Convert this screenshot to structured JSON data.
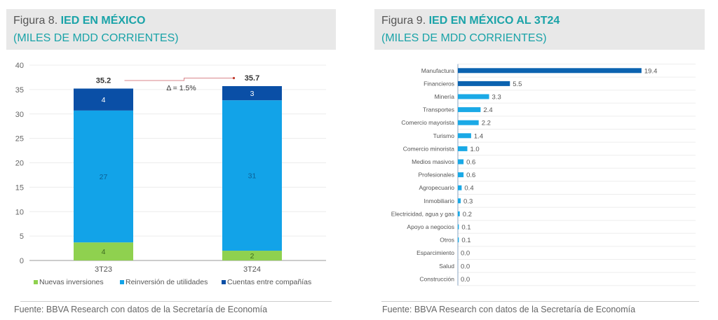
{
  "figures": [
    {
      "label": "Figura 8. ",
      "title": "IED EN MÉXICO",
      "subtitle": "(MILES DE MDD CORRIENTES)",
      "source": "Fuente: BBVA Research con datos de la Secretaría de Economía"
    },
    {
      "label": "Figura 9. ",
      "title": "IED EN MÉXICO AL 3T24",
      "subtitle": "(MILES DE MDD CORRIENTES)",
      "source": "Fuente: BBVA Research con datos de la Secretaría de Economía"
    }
  ],
  "chart_data": [
    {
      "type": "bar",
      "stacked": true,
      "title": "IED EN MÉXICO (MILES DE MDD CORRIENTES)",
      "categories": [
        "3T23",
        "3T24"
      ],
      "series": [
        {
          "name": "Nuevas inversiones",
          "values": [
            3.7,
            2.0
          ],
          "labels": [
            "4",
            "2"
          ],
          "color": "#8fd14f"
        },
        {
          "name": "Reinversión de utilidades",
          "values": [
            27.0,
            30.8
          ],
          "labels": [
            "27",
            "31"
          ],
          "color": "#12a3e8"
        },
        {
          "name": "Cuentas entre compañías",
          "values": [
            4.5,
            2.9
          ],
          "labels": [
            "4",
            "3"
          ],
          "color": "#0a4fa6"
        }
      ],
      "totals": [
        "35.2",
        "35.7"
      ],
      "annotation": "Δ = 1.5%",
      "annotation_color": "#d9868b",
      "ylim": [
        0,
        40
      ],
      "yticks": [
        0,
        5,
        10,
        15,
        20,
        25,
        30,
        35,
        40
      ],
      "grid": true,
      "legend": "bottom",
      "xlabel": "",
      "ylabel": ""
    },
    {
      "type": "bar",
      "orientation": "horizontal",
      "title": "IED EN MÉXICO AL 3T24 (MILES DE MDD CORRIENTES)",
      "categories": [
        "Manufactura",
        "Financieros",
        "Minería",
        "Transportes",
        "Comercio mayorista",
        "Turismo",
        "Comercio minorista",
        "Medios masivos",
        "Profesionales",
        "Agropecuario",
        "Inmobiliario",
        "Electricidad, agua y gas",
        "Apoyo a negocios",
        "Otros",
        "Esparcimiento",
        "Salud",
        "Construcción"
      ],
      "values": [
        19.4,
        5.5,
        3.3,
        2.4,
        2.2,
        1.4,
        1.0,
        0.6,
        0.6,
        0.4,
        0.3,
        0.2,
        0.1,
        0.1,
        0.0,
        0.0,
        0.0
      ],
      "value_labels": [
        "19.4",
        "5.5",
        "3.3",
        "2.4",
        "2.2",
        "1.4",
        "1.0",
        "0.6",
        "0.6",
        "0.4",
        "0.3",
        "0.2",
        "0.1",
        "0.1",
        "0.0",
        "0.0",
        "0.0"
      ],
      "highlight_count": 2,
      "colors": {
        "highlight": "#0b63b0",
        "default": "#1aa9e6"
      },
      "xlim": [
        0,
        20
      ],
      "grid": true,
      "legend": "none",
      "xlabel": "",
      "ylabel": ""
    }
  ]
}
